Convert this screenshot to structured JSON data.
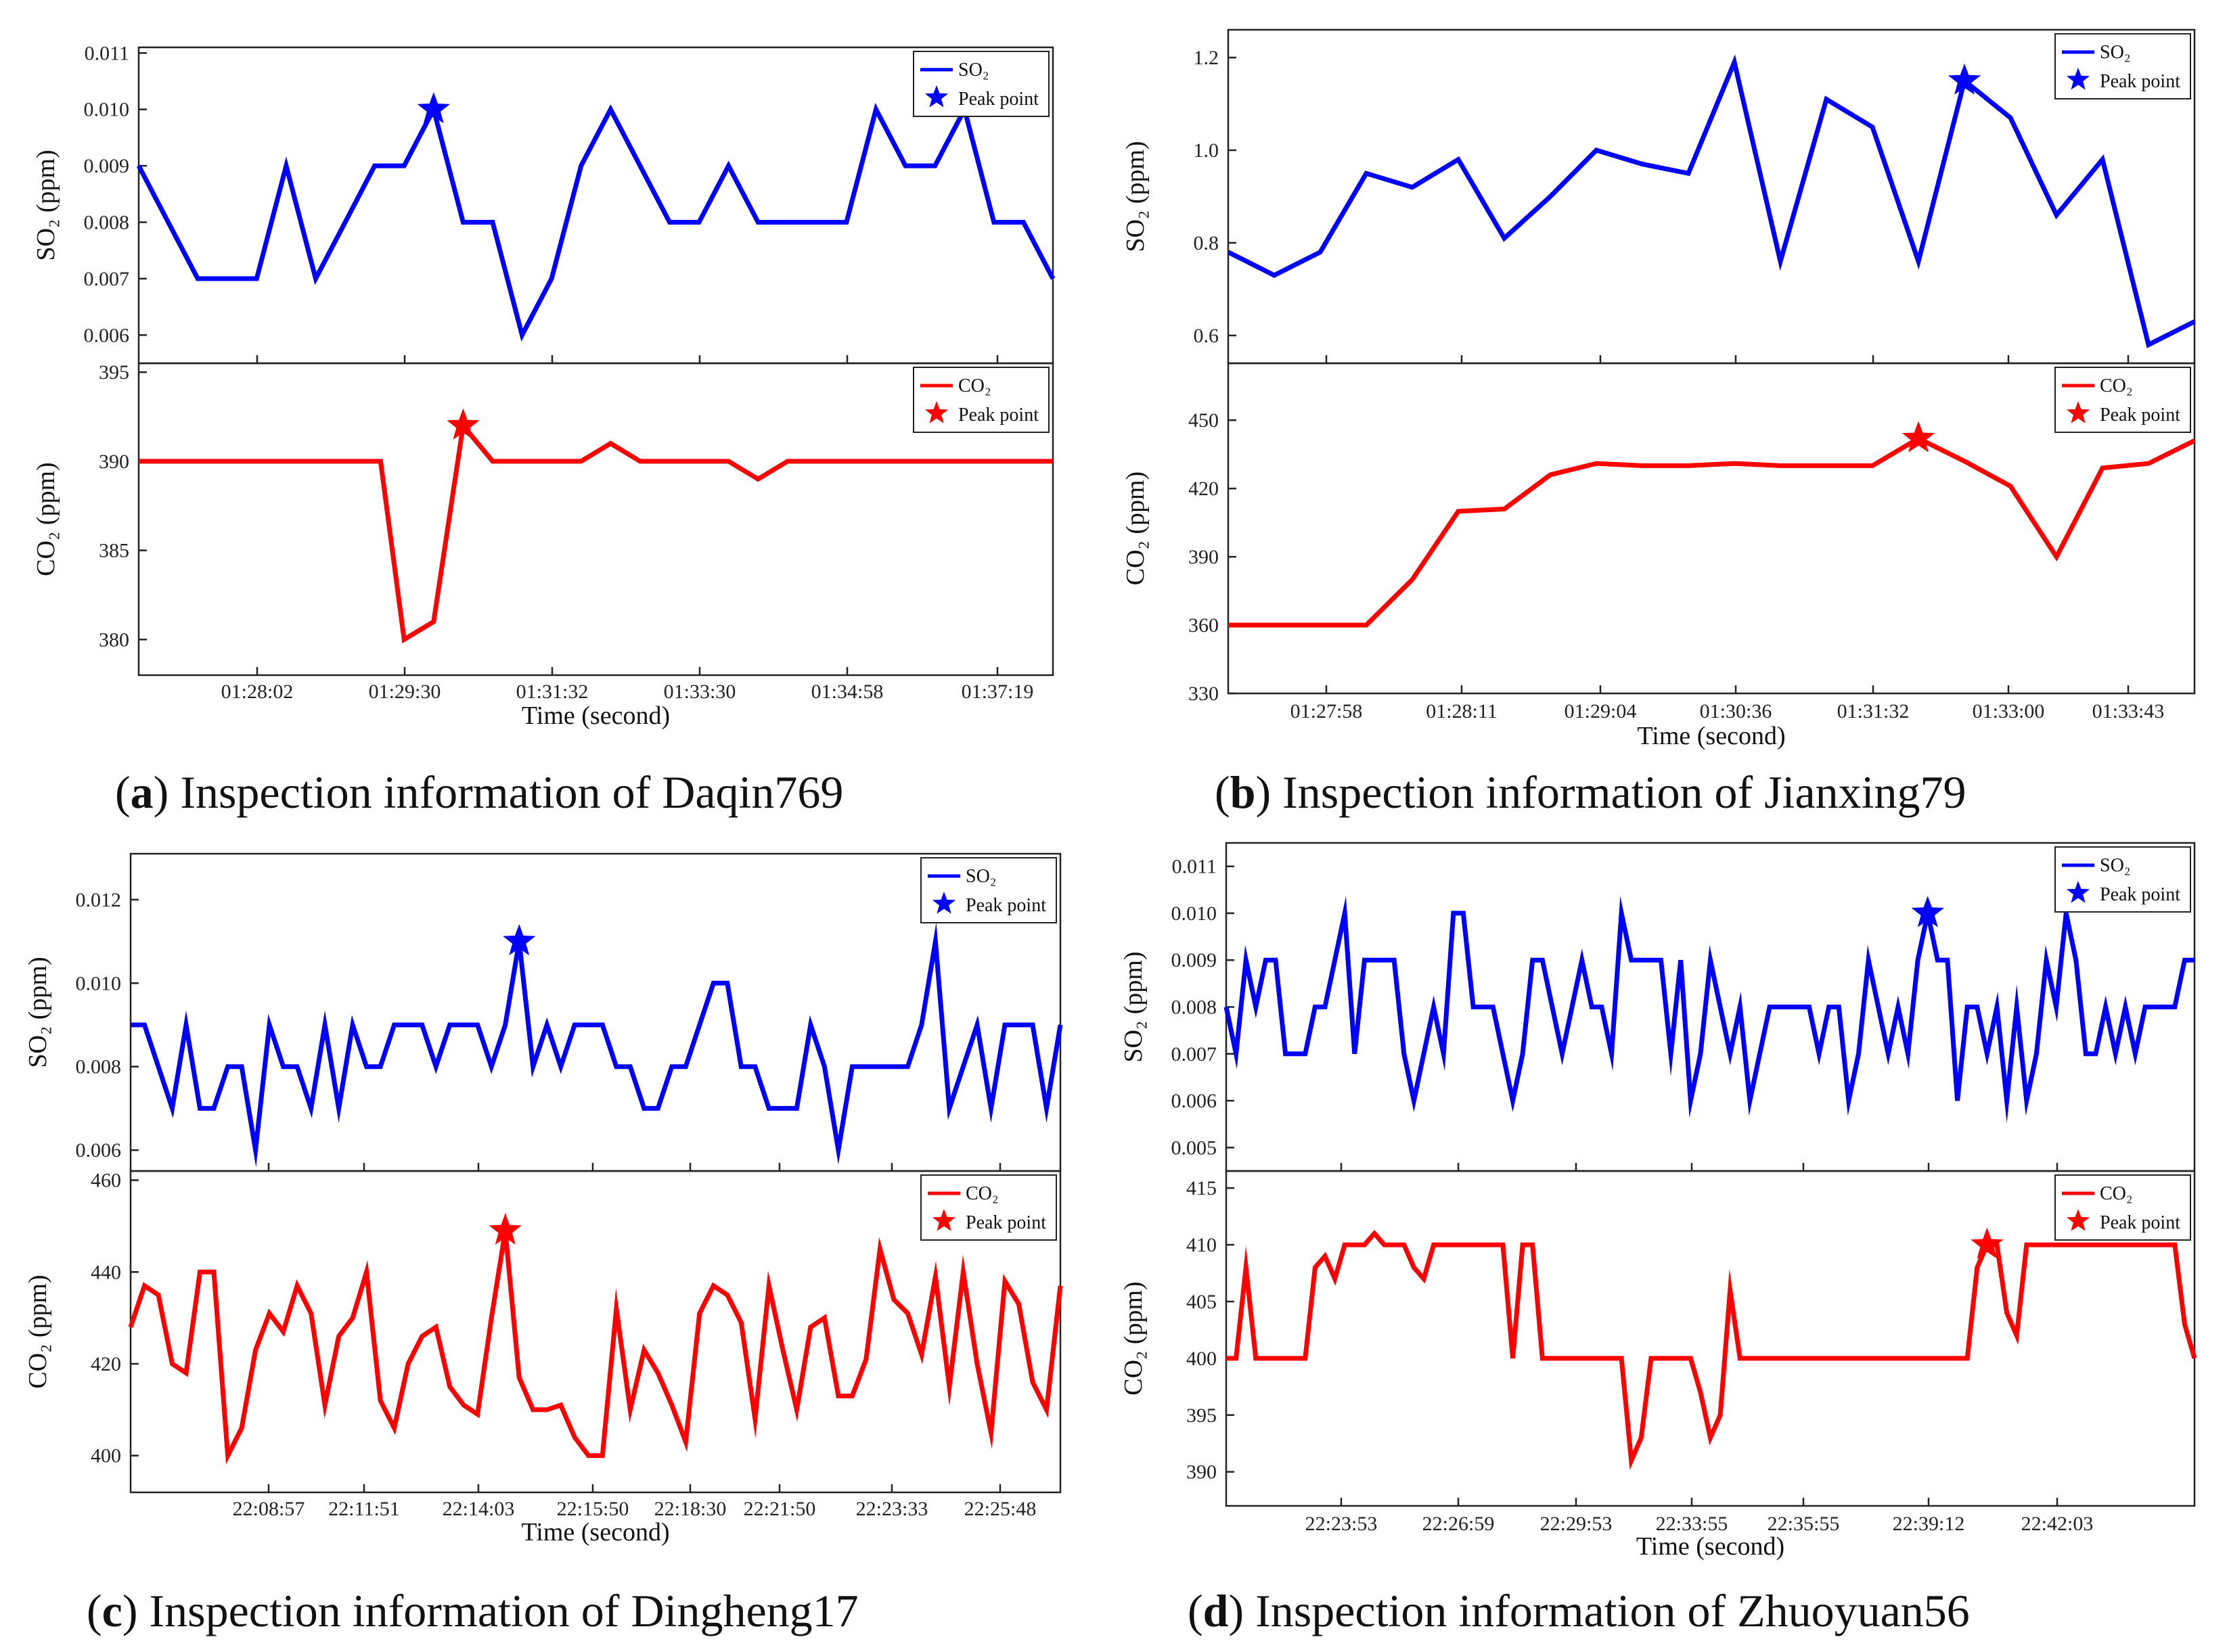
{
  "figure": {
    "panels": [
      {
        "id": "a",
        "caption": {
          "letter": "a",
          "text": "Inspection information of Daqin769"
        },
        "xlabel": "Time (second)",
        "x_tick_labels": [
          "01:28:02",
          "01:29:30",
          "01:31:32",
          "01:33:30",
          "01:34:58",
          "01:37:19"
        ],
        "so2": {
          "ylabel": "SO₂ (ppm)",
          "legend": {
            "series": "SO₂",
            "peak": "Peak point"
          },
          "ylim": [
            0.0055,
            0.0111
          ],
          "ticks": [
            0.006,
            0.007,
            0.008,
            0.009,
            0.01,
            0.011
          ],
          "tick_labels": [
            "0.006",
            "0.007",
            "0.008",
            "0.009",
            "0.010",
            "0.011"
          ],
          "values": [
            0.009,
            0.007,
            0.007,
            0.007,
            0.009,
            0.007,
            0.008,
            0.009,
            0.009,
            0.01,
            0.008,
            0.008,
            0.006,
            0.007,
            0.009,
            0.01,
            0.009,
            0.008,
            0.008,
            0.009,
            0.008,
            0.008,
            0.008,
            0.008,
            0.01,
            0.009,
            0.009,
            0.01,
            0.008,
            0.008,
            0.007
          ],
          "x": [
            0,
            2,
            3,
            4,
            5,
            6,
            7,
            8,
            9,
            10,
            11,
            12,
            13,
            14,
            15,
            16,
            17,
            18,
            19,
            20,
            21,
            22,
            23,
            24,
            25,
            26,
            27,
            28,
            29,
            30,
            31
          ],
          "x_range": [
            0,
            31
          ],
          "peak_index": 9,
          "color": "#0000ff"
        },
        "co2": {
          "ylabel": "CO₂ (ppm)",
          "legend": {
            "series": "CO₂",
            "peak": "Peak point"
          },
          "ylim": [
            378,
            395.5
          ],
          "ticks": [
            380,
            385,
            390,
            395
          ],
          "tick_labels": [
            "380",
            "385",
            "390",
            "395"
          ],
          "values": [
            390,
            390,
            390,
            390,
            390,
            390,
            390,
            390,
            390,
            380,
            381,
            392,
            390,
            390,
            390,
            390,
            391,
            390,
            390,
            390,
            390,
            389,
            390,
            390,
            390,
            390,
            390,
            390,
            390,
            390,
            390,
            390
          ],
          "x": [
            0,
            1,
            2,
            3,
            4,
            5,
            6,
            7,
            8.2,
            9,
            10,
            11,
            12,
            13,
            14,
            15,
            16,
            17,
            18,
            19,
            20,
            21,
            22,
            23,
            24,
            25,
            26,
            27,
            28,
            29,
            30,
            31
          ],
          "x_range": [
            0,
            31
          ],
          "peak_index": 11,
          "color": "#ff0000"
        }
      },
      {
        "id": "b",
        "caption": {
          "letter": "b",
          "text": "Inspection information of Jianxing79"
        },
        "xlabel": "Time (second)",
        "x_tick_labels": [
          "01:27:58",
          "01:28:11",
          "01:29:04",
          "01:30:36",
          "01:31:32",
          "01:33:00",
          "01:33:43"
        ],
        "so2": {
          "ylabel": "SO₂ (ppm)",
          "legend": {
            "series": "SO₂",
            "peak": "Peak point"
          },
          "ylim": [
            0.54,
            1.26
          ],
          "ticks": [
            0.6,
            0.8,
            1.0,
            1.2
          ],
          "tick_labels": [
            "0.6",
            "0.8",
            "1.0",
            "1.2"
          ],
          "values": [
            0.78,
            0.73,
            0.78,
            0.95,
            0.92,
            0.98,
            0.81,
            0.9,
            1.0,
            0.97,
            0.95,
            1.19,
            0.76,
            1.11,
            1.05,
            0.76,
            1.15,
            1.07,
            0.86,
            0.98,
            0.58,
            0.63
          ],
          "x": [
            0,
            1,
            2,
            3,
            4,
            5,
            6,
            7,
            8,
            9,
            10,
            11,
            12,
            13,
            14,
            15,
            16,
            17,
            18,
            19,
            20,
            21
          ],
          "x_range": [
            0,
            21
          ],
          "peak_index": 16,
          "color": "#0000ff"
        },
        "co2": {
          "ylabel": "CO₂ (ppm)",
          "legend": {
            "series": "CO₂",
            "peak": "Peak point"
          },
          "ylim": [
            330,
            475
          ],
          "ticks": [
            330,
            360,
            390,
            420,
            450
          ],
          "tick_labels": [
            "330",
            "360",
            "390",
            "420",
            "450"
          ],
          "values": [
            360,
            360,
            360,
            360,
            380,
            410,
            411,
            426,
            431,
            430,
            430,
            431,
            430,
            430,
            430,
            442,
            432,
            421,
            390,
            429,
            431,
            441
          ],
          "x": [
            0,
            1,
            2,
            3,
            4,
            5,
            6,
            7,
            8,
            9,
            10,
            11,
            12,
            13,
            14,
            15,
            16,
            17,
            18,
            19,
            20,
            21
          ],
          "x_range": [
            0,
            21
          ],
          "peak_index": 15,
          "color": "#ff0000"
        }
      },
      {
        "id": "c",
        "caption": {
          "letter": "c",
          "text": "Inspection information of Dingheng17"
        },
        "xlabel": "Time (second)",
        "x_tick_labels": [
          "22:08:57",
          "22:11:51",
          "22:14:03",
          "22:15:50",
          "22:18:30",
          "22:21:50",
          "22:23:33",
          "22:25:48"
        ],
        "so2": {
          "ylabel": "SO₂ (ppm)",
          "legend": {
            "series": "SO₂",
            "peak": "Peak point"
          },
          "ylim": [
            0.0055,
            0.0131
          ],
          "ticks": [
            0.006,
            0.008,
            0.01,
            0.012
          ],
          "tick_labels": [
            "0.006",
            "0.008",
            "0.010",
            "0.012"
          ],
          "values": [
            0.009,
            0.009,
            0.008,
            0.007,
            0.009,
            0.007,
            0.007,
            0.008,
            0.008,
            0.006,
            0.009,
            0.008,
            0.008,
            0.007,
            0.009,
            0.007,
            0.009,
            0.008,
            0.008,
            0.009,
            0.009,
            0.009,
            0.008,
            0.009,
            0.009,
            0.009,
            0.008,
            0.009,
            0.011,
            0.008,
            0.009,
            0.008,
            0.009,
            0.009,
            0.009,
            0.008,
            0.008,
            0.007,
            0.007,
            0.008,
            0.008,
            0.009,
            0.01,
            0.01,
            0.008,
            0.008,
            0.007,
            0.007,
            0.007,
            0.009,
            0.008,
            0.006,
            0.008,
            0.008,
            0.008,
            0.008,
            0.008,
            0.009,
            0.011,
            0.007,
            0.008,
            0.009,
            0.007,
            0.009,
            0.009,
            0.009,
            0.007,
            0.009
          ],
          "x_range": [
            0,
            67
          ],
          "peak_index": 28,
          "color": "#0000ff"
        },
        "co2": {
          "ylabel": "CO₂ (ppm)",
          "legend": {
            "series": "CO₂",
            "peak": "Peak point"
          },
          "ylim": [
            392,
            462
          ],
          "ticks": [
            400,
            420,
            440,
            460
          ],
          "tick_labels": [
            "400",
            "420",
            "440",
            "460"
          ],
          "values": [
            428,
            437,
            435,
            420,
            418,
            440,
            440,
            400,
            406,
            423,
            431,
            427,
            437,
            431,
            411,
            426,
            430,
            440,
            412,
            406,
            420,
            426,
            428,
            415,
            411,
            409,
            430,
            449,
            417,
            410,
            410,
            411,
            404,
            400,
            400,
            432,
            410,
            423,
            418,
            411,
            403,
            431,
            437,
            435,
            429,
            408,
            437,
            423,
            410,
            428,
            430,
            413,
            413,
            421,
            445,
            434,
            431,
            422,
            439,
            415,
            440,
            420,
            405,
            438,
            433,
            416,
            410,
            437
          ],
          "x_range": [
            0,
            67
          ],
          "peak_index": 27,
          "color": "#ff0000"
        }
      },
      {
        "id": "d",
        "caption": {
          "letter": "d",
          "text": "Inspection information of Zhuoyuan56"
        },
        "xlabel": "Time (second)",
        "x_tick_labels": [
          "22:23:53",
          "22:26:59",
          "22:29:53",
          "22:33:55",
          "22:35:55",
          "22:39:12",
          "22:42:03"
        ],
        "so2": {
          "ylabel": "SO₂ (ppm)",
          "legend": {
            "series": "SO₂",
            "peak": "Peak point"
          },
          "ylim": [
            0.0045,
            0.0115
          ],
          "ticks": [
            0.005,
            0.006,
            0.007,
            0.008,
            0.009,
            0.01,
            0.011
          ],
          "tick_labels": [
            "0.005",
            "0.006",
            "0.007",
            "0.008",
            "0.009",
            "0.010",
            "0.011"
          ],
          "values": [
            0.008,
            0.007,
            0.009,
            0.008,
            0.009,
            0.009,
            0.007,
            0.007,
            0.007,
            0.008,
            0.008,
            0.009,
            0.01,
            0.007,
            0.009,
            0.009,
            0.009,
            0.009,
            0.007,
            0.006,
            0.007,
            0.008,
            0.007,
            0.01,
            0.01,
            0.008,
            0.008,
            0.008,
            0.007,
            0.006,
            0.007,
            0.009,
            0.009,
            0.008,
            0.007,
            0.008,
            0.009,
            0.008,
            0.008,
            0.007,
            0.01,
            0.009,
            0.009,
            0.009,
            0.009,
            0.007,
            0.009,
            0.006,
            0.007,
            0.009,
            0.008,
            0.007,
            0.008,
            0.006,
            0.007,
            0.008,
            0.008,
            0.008,
            0.008,
            0.008,
            0.007,
            0.008,
            0.008,
            0.006,
            0.007,
            0.009,
            0.008,
            0.007,
            0.008,
            0.007,
            0.009,
            0.01,
            0.009,
            0.009,
            0.006,
            0.008,
            0.008,
            0.007,
            0.008,
            0.006,
            0.008,
            0.006,
            0.007,
            0.009,
            0.008,
            0.01,
            0.009,
            0.007,
            0.007,
            0.008,
            0.007,
            0.008,
            0.007,
            0.008,
            0.008,
            0.008,
            0.008,
            0.009,
            0.009
          ],
          "x_range": [
            0,
            98
          ],
          "peak_index": 71,
          "color": "#0000ff"
        },
        "co2": {
          "ylabel": "CO₂ (ppm)",
          "legend": {
            "series": "CO₂",
            "peak": "Peak point"
          },
          "ylim": [
            387,
            416.5
          ],
          "ticks": [
            390,
            395,
            400,
            405,
            410,
            415
          ],
          "tick_labels": [
            "390",
            "395",
            "400",
            "405",
            "410",
            "415"
          ],
          "values": [
            400,
            400,
            408,
            400,
            400,
            400,
            400,
            400,
            400,
            408,
            409,
            407,
            410,
            410,
            410,
            411,
            410,
            410,
            410,
            408,
            407,
            410,
            410,
            410,
            410,
            410,
            410,
            410,
            410,
            400,
            410,
            410,
            400,
            400,
            400,
            400,
            400,
            400,
            400,
            400,
            400,
            391,
            393,
            400,
            400,
            400,
            400,
            400,
            397,
            393,
            395,
            406,
            400,
            400,
            400,
            400,
            400,
            400,
            400,
            400,
            400,
            400,
            400,
            400,
            400,
            400,
            400,
            400,
            400,
            400,
            400,
            400,
            400,
            400,
            400,
            400,
            408,
            410,
            410,
            404,
            402,
            410,
            410,
            410,
            410,
            410,
            410,
            410,
            410,
            410,
            410,
            410,
            410,
            410,
            410,
            410,
            410,
            403,
            400
          ],
          "x_range": [
            0,
            98
          ],
          "peak_index": 77,
          "color": "#ff0000"
        }
      }
    ]
  }
}
